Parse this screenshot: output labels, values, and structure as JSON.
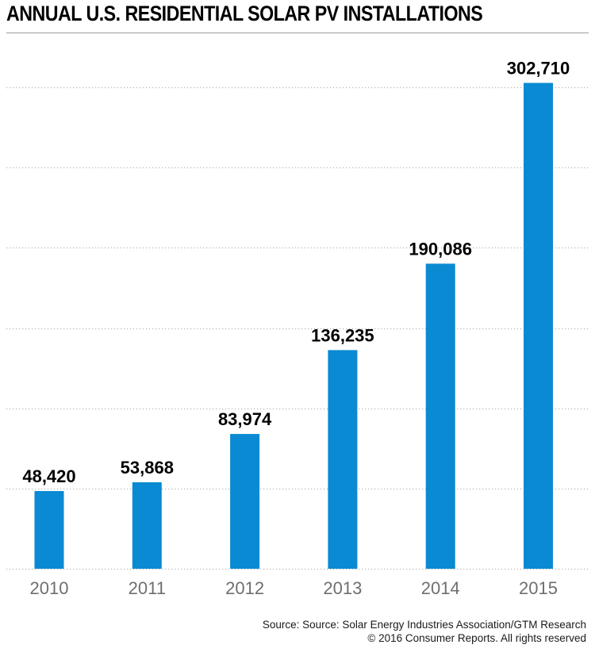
{
  "chart_data": {
    "type": "bar",
    "title": "ANNUAL U.S. RESIDENTIAL SOLAR PV INSTALLATIONS",
    "categories": [
      "2010",
      "2011",
      "2012",
      "2013",
      "2014",
      "2015"
    ],
    "values": [
      48420,
      53868,
      83974,
      136235,
      190086,
      302710
    ],
    "data_labels": [
      "48,420",
      "53,868",
      "83,974",
      "136,235",
      "190,086",
      "302,710"
    ],
    "xlabel": "",
    "ylabel": "",
    "ylim": [
      0,
      300000
    ],
    "grid": true,
    "bar_color": "#0a8ad2",
    "grid_color": "#b5b5b5",
    "tick_label_color": "#6f6f6f"
  },
  "footer": {
    "source": "Source: Source: Solar Energy Industries Association/GTM Research",
    "copyright": "© 2016 Consumer Reports. All rights reserved"
  }
}
